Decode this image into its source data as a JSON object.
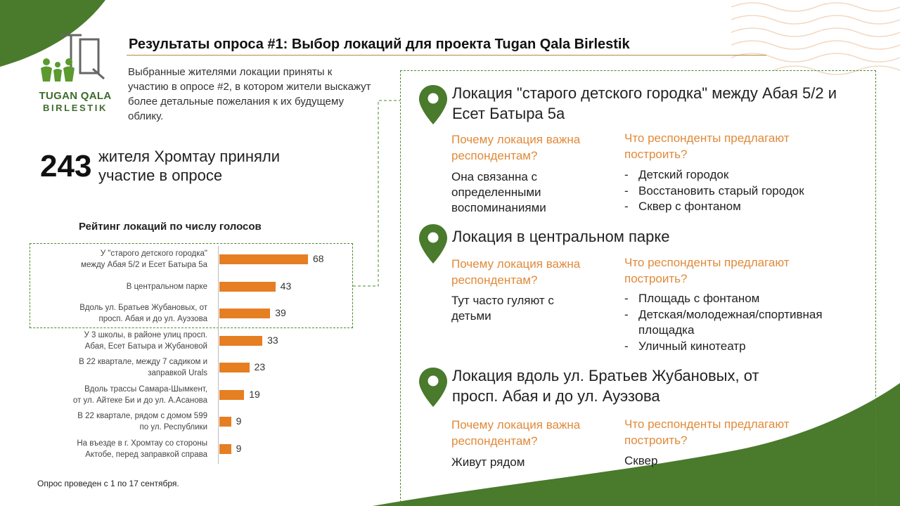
{
  "brand": {
    "line1": "TUGAN QALA",
    "line2": "BIRLESTIK"
  },
  "title": "Результаты опроса #1: Выбор локаций для проекта Tugan Qala Birlestik",
  "intro": "Выбранные жителями локации приняты к участию в опросе #2, в котором жители выскажут более детальные пожелания к их будущему облику.",
  "participants": {
    "count": "243",
    "text": "жителя Хромтау приняли участие в опросе"
  },
  "colors": {
    "green": "#4a7a2c",
    "orange": "#e67e22",
    "accent_text": "#e08a3a"
  },
  "chart_data": {
    "type": "bar",
    "orientation": "horizontal",
    "title": "Рейтинг локаций по числу голосов",
    "categories": [
      [
        "У \"старого детского городка\"",
        "между  Абая 5/2 и Есет Батыра 5а"
      ],
      [
        "В центральном  парке"
      ],
      [
        "Вдоль ул. Братьев Жубановых, от",
        "просп. Абая и до ул. Ауэзова"
      ],
      [
        "У 3 школы, в районе улиц просп.",
        "Абая, Есет Батыра и Жубановой"
      ],
      [
        "В 22 квартале, между 7 садиком и",
        "заправкой Urals"
      ],
      [
        "Вдоль трассы Самара-Шымкент,",
        "от ул. Айтеке Би и до ул. А.Асанова"
      ],
      [
        "В 22 квартале, рядом с домом 599",
        "по ул. Республики"
      ],
      [
        "На въезде в г. Хромтау со стороны",
        "Актобе, перед заправкой справа"
      ]
    ],
    "values": [
      68,
      43,
      39,
      33,
      23,
      19,
      9,
      9
    ],
    "highlighted_top": 3
  },
  "footnote": "Опрос проведен с 1 по 17 сентября.",
  "locations": [
    {
      "title": "Локация \"старого детского городка\" между Абая 5/2 и Есет Батыра 5а",
      "why_q": "Почему локация важна респондентам?",
      "why_a": "Она связанна с определенными воспоминаниями",
      "build_q": "Что респонденты предлагают построить?",
      "build_items": [
        "Детский городок",
        "Восстановить старый городок",
        "Сквер с фонтаном"
      ]
    },
    {
      "title": "Локация в центральном парке",
      "why_q": "Почему локация важна респондентам?",
      "why_a": "Тут часто гуляют с детьми",
      "build_q": "Что респонденты предлагают построить?",
      "build_items": [
        "Площадь с фонтаном",
        "Детская/молодежная/спортивная площадка",
        "Уличный кинотеатр"
      ]
    },
    {
      "title": "Локация вдоль ул. Братьев Жубановых, от просп. Абая и до ул. Ауэзова",
      "why_q": "Почему локация важна респондентам?",
      "why_a": "Живут рядом",
      "build_q": "Что респонденты предлагают построить?",
      "build_answer": "Сквер"
    }
  ]
}
